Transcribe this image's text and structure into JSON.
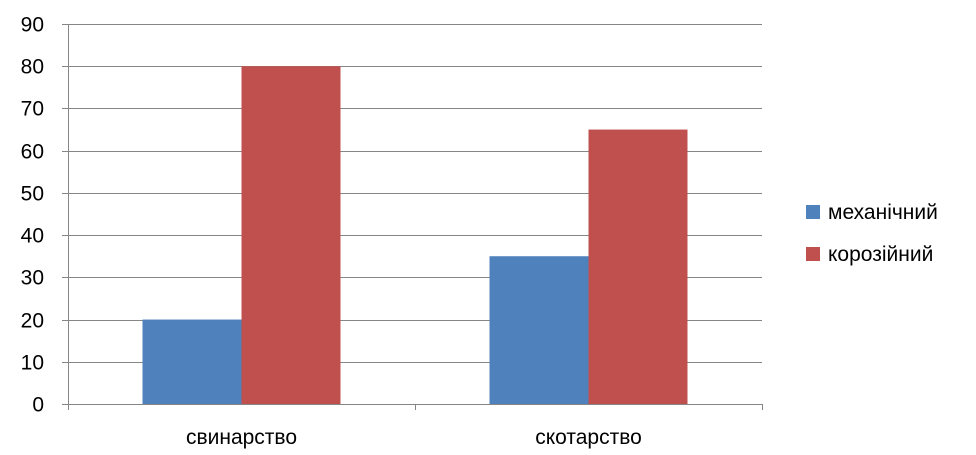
{
  "chart_data": {
    "type": "bar",
    "categories": [
      "свинарство",
      "скотарство"
    ],
    "series": [
      {
        "name": "механічний",
        "values": [
          20,
          35
        ],
        "color": "#4F81BD"
      },
      {
        "name": "корозійний",
        "values": [
          80,
          65
        ],
        "color": "#C0504D"
      }
    ],
    "title": "",
    "xlabel": "",
    "ylabel": "",
    "ylim": [
      0,
      90
    ],
    "yticks": [
      0,
      10,
      20,
      30,
      40,
      50,
      60,
      70,
      80,
      90
    ],
    "grid": true,
    "legend_position": "right"
  }
}
